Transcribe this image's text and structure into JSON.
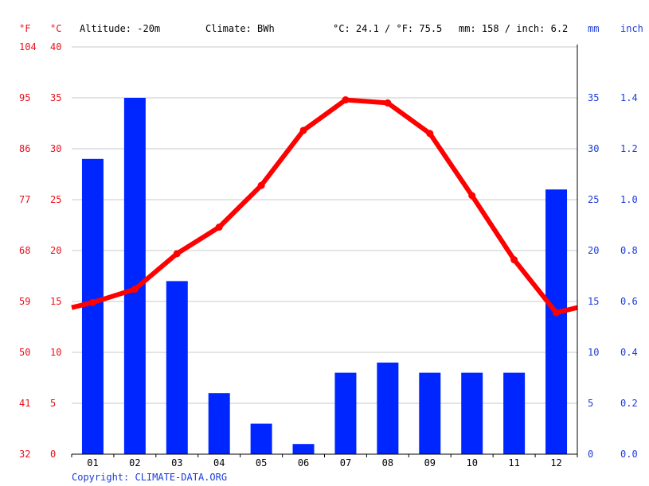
{
  "header": {
    "altitude": "Altitude: -20m",
    "climate": "Climate: BWh",
    "temperature_avg": "°C: 24.1 / °F: 75.5",
    "precipitation_total": "mm: 158 / inch: 6.2"
  },
  "units": {
    "fahrenheit": "°F",
    "celsius": "°C",
    "mm": "mm",
    "inch": "inch"
  },
  "colors": {
    "temperature": "#ff0000",
    "temperature_axis": "#e8111b",
    "precipitation": "#0026ff",
    "precipitation_axis": "#1b3bdc",
    "grid": "#c8c8c8",
    "axis": "#000000",
    "copyright": "#1b3bdc"
  },
  "copyright": "Copyright: CLIMATE-DATA.ORG",
  "chart_data": {
    "type": "bar+line",
    "categories": [
      "01",
      "02",
      "03",
      "04",
      "05",
      "06",
      "07",
      "08",
      "09",
      "10",
      "11",
      "12"
    ],
    "series": [
      {
        "type": "bar",
        "axis": "right",
        "unit": "mm",
        "values": [
          29,
          35,
          17,
          6,
          3,
          1,
          8,
          9,
          8,
          8,
          8,
          26
        ]
      },
      {
        "type": "line",
        "axis": "left",
        "unit": "°C",
        "values": [
          14.9,
          16.2,
          19.7,
          22.3,
          26.4,
          31.8,
          34.8,
          34.5,
          31.5,
          25.4,
          19.1,
          13.9
        ]
      }
    ],
    "y_left_celsius": {
      "ticks": [
        0,
        5,
        10,
        15,
        20,
        25,
        30,
        35,
        40
      ],
      "range": [
        0,
        40
      ]
    },
    "y_left_fahrenheit": {
      "ticks": [
        32,
        41,
        50,
        59,
        68,
        77,
        86,
        95,
        104
      ]
    },
    "y_right_mm": {
      "ticks": [
        0,
        5,
        10,
        15,
        20,
        25,
        30,
        35
      ],
      "range": [
        0,
        40
      ]
    },
    "y_right_inch": {
      "ticks": [
        "0.0",
        "0.2",
        "0.4",
        "0.6",
        "0.8",
        "1.0",
        "1.2",
        "1.4"
      ]
    },
    "grid": true
  }
}
